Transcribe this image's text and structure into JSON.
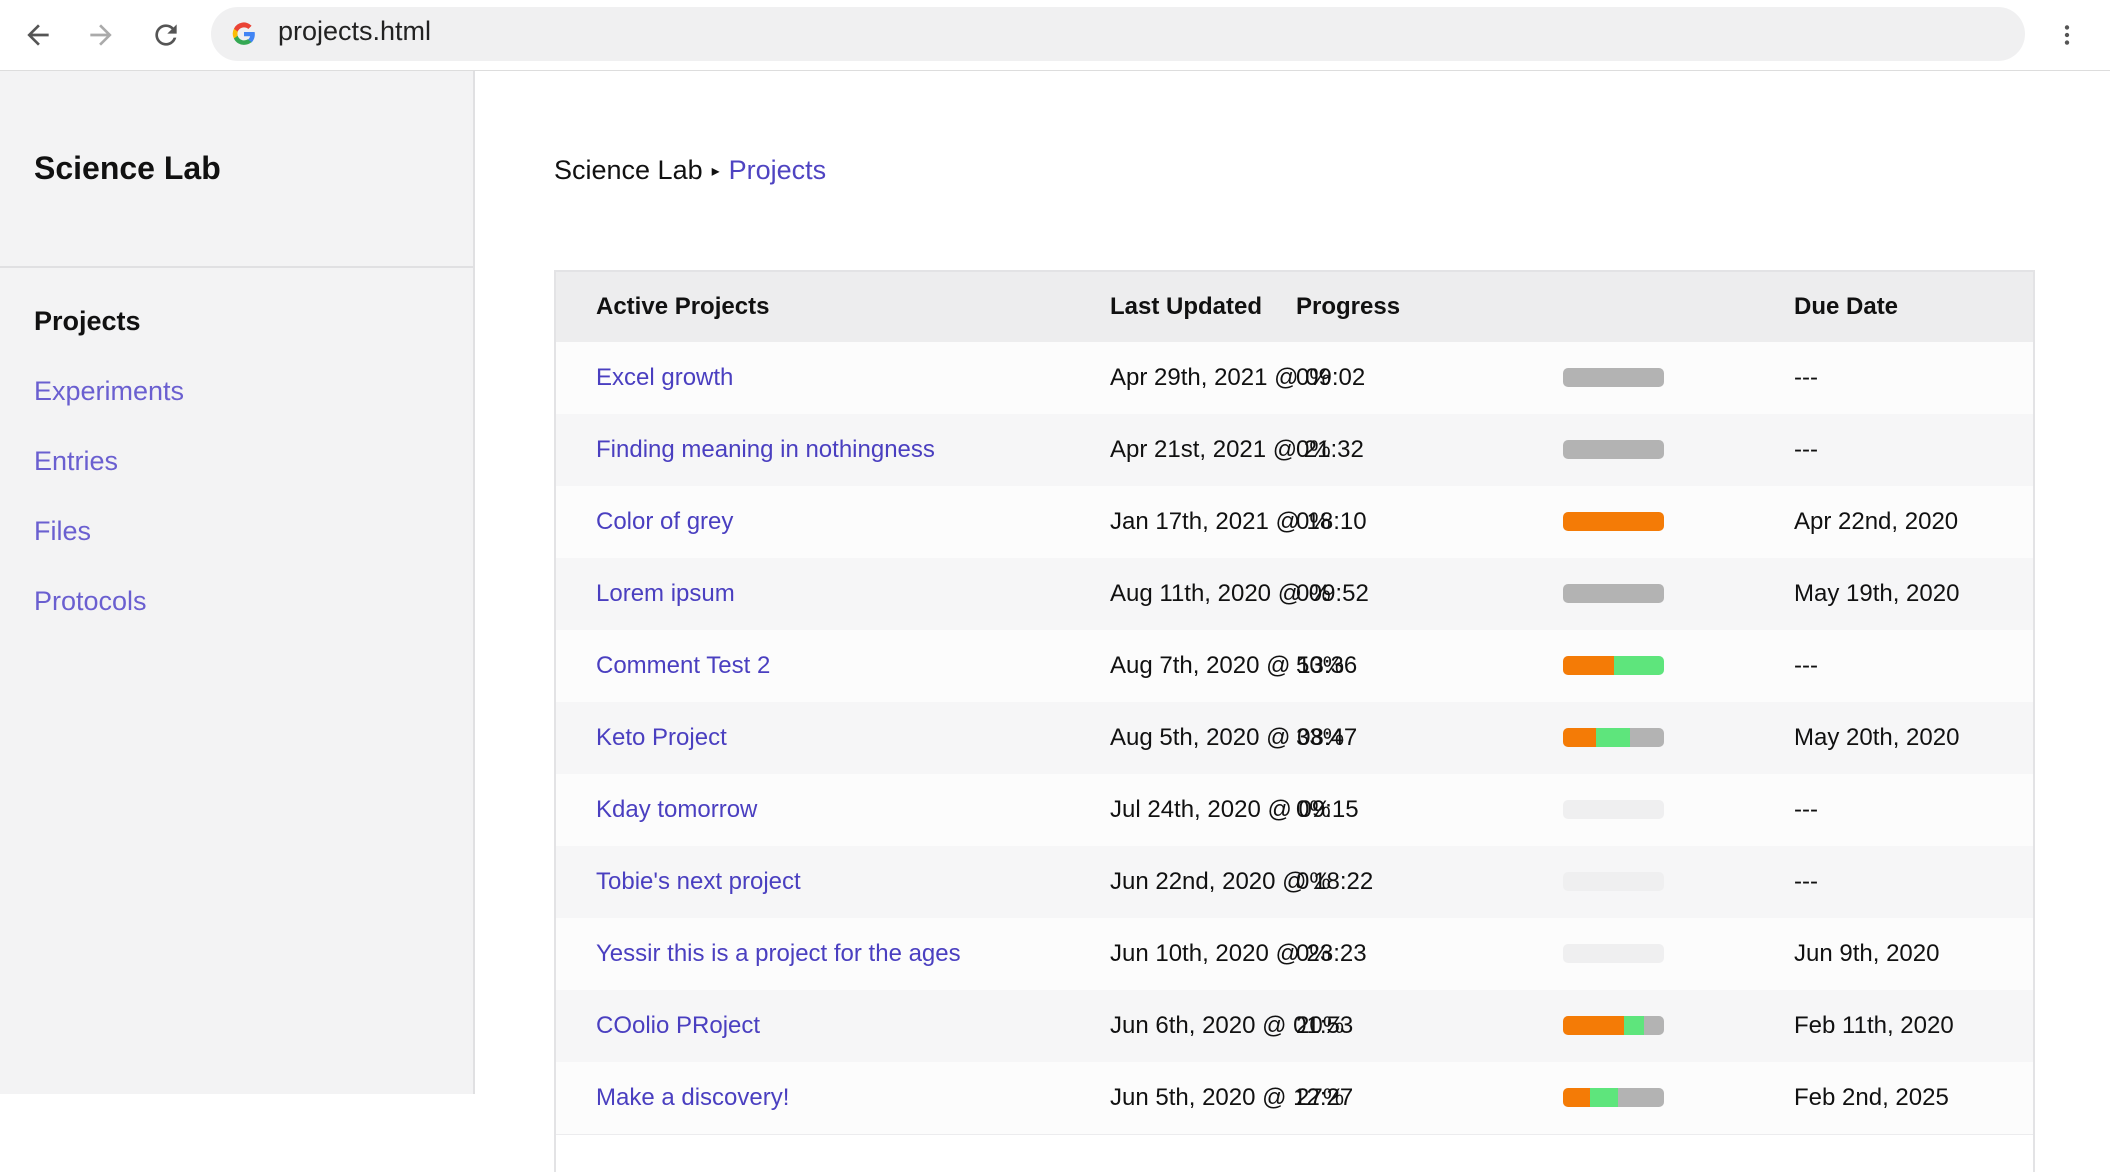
{
  "browser": {
    "url": "projects.html"
  },
  "sidebar": {
    "title": "Science Lab",
    "nav": [
      "Projects",
      "Experiments",
      "Entries",
      "Files",
      "Protocols"
    ]
  },
  "breadcrumb": [
    "Science Lab",
    "Projects"
  ],
  "table": {
    "headers": [
      "Active Projects",
      "Last Updated",
      "Progress",
      "Due Date"
    ],
    "bar_colors": [
      "#f47b06",
      "#5ee57c",
      "#b3b3b3"
    ],
    "rows": [
      {
        "name": "Excel growth",
        "updated": "Apr 29th, 2021 @ 09:02",
        "progress": "0%",
        "bar": [
          0,
          0,
          100
        ],
        "due": "---"
      },
      {
        "name": "Finding meaning in nothingness",
        "updated": "Apr 21st, 2021 @ 21:32",
        "progress": "0%",
        "bar": [
          0,
          0,
          100
        ],
        "due": "---"
      },
      {
        "name": "Color of grey",
        "updated": "Jan 17th, 2021 @ 18:10",
        "progress": "0%",
        "bar": [
          100,
          0,
          0
        ],
        "due": "Apr 22nd, 2020"
      },
      {
        "name": "Lorem ipsum",
        "updated": "Aug 11th, 2020 @ 09:52",
        "progress": "0%",
        "bar": [
          0,
          0,
          100
        ],
        "due": "May 19th, 2020"
      },
      {
        "name": "Comment Test 2",
        "updated": "Aug 7th, 2020 @ 13:36",
        "progress": "50%",
        "bar": [
          50,
          50,
          0
        ],
        "due": "---"
      },
      {
        "name": "Keto Project",
        "updated": "Aug 5th, 2020 @ 08:47",
        "progress": "33%",
        "bar": [
          33,
          33,
          34
        ],
        "due": "May 20th, 2020"
      },
      {
        "name": "Kday tomorrow",
        "updated": "Jul 24th, 2020 @ 09:15",
        "progress": "0%",
        "bar": [
          0,
          0,
          0
        ],
        "due": "---"
      },
      {
        "name": "Tobie's next project",
        "updated": "Jun 22nd, 2020 @ 18:22",
        "progress": "0%",
        "bar": [
          0,
          0,
          0
        ],
        "due": "---"
      },
      {
        "name": "Yessir this is a project for the ages",
        "updated": "Jun 10th, 2020 @ 23:23",
        "progress": "0%",
        "bar": [
          0,
          0,
          0
        ],
        "due": "Jun 9th, 2020"
      },
      {
        "name": "COolio PRoject",
        "updated": "Jun 6th, 2020 @ 01:53",
        "progress": "20%",
        "bar": [
          60,
          20,
          20
        ],
        "due": "Feb 11th, 2020"
      },
      {
        "name": "Make a discovery!",
        "updated": "Jun 5th, 2020 @ 12:27",
        "progress": "27%",
        "bar": [
          27,
          27,
          46
        ],
        "due": "Feb 2nd, 2025"
      }
    ]
  }
}
